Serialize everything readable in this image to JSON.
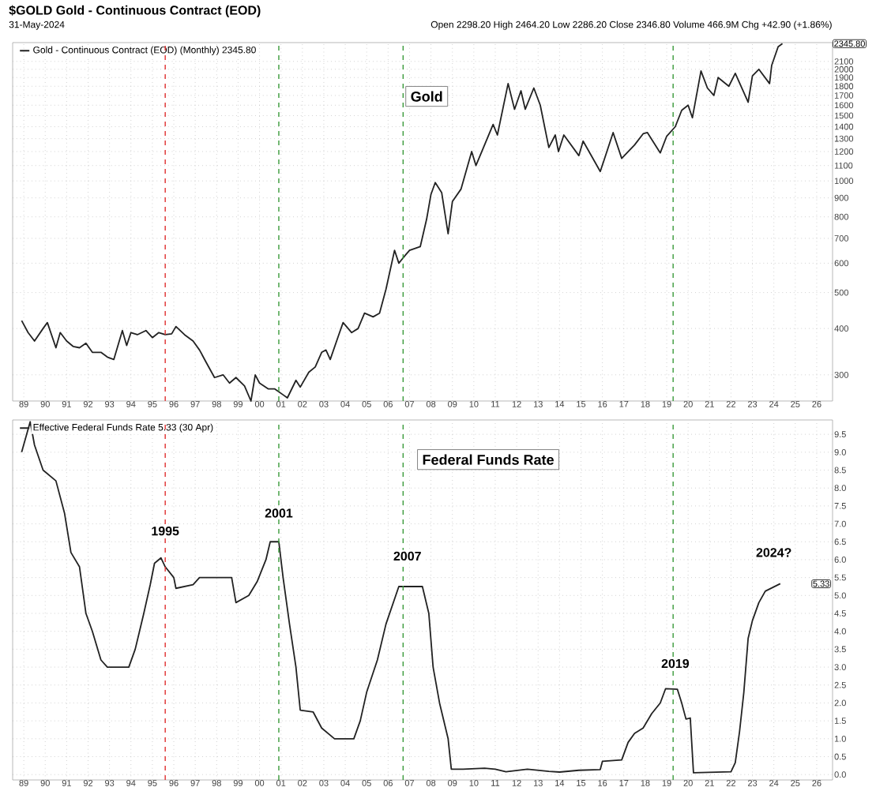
{
  "chart_data": [
    {
      "type": "line",
      "title": "$GOLD Gold - Continuous Contract (EOD)",
      "subtitle": "31-May-2024",
      "log": "y",
      "grid": true,
      "legend": "top left",
      "line_style": "solid",
      "annotations": [
        "Open 2298.20 High 2464.20 Low 2286.20 Close 2346.80 Volume 466.9M Chg +42.90 (+1.86%)",
        "Gold",
        "2345.80"
      ],
      "series": [
        {
          "name": "Gold - Continuous Contract (EOD) (Monthly) 2345.80",
          "color": "#222222",
          "x": [
            1988.9,
            1989.2,
            1989.5,
            1989.9,
            1990.1,
            1990.5,
            1990.7,
            1991.0,
            1991.3,
            1991.6,
            1991.9,
            1992.2,
            1992.6,
            1992.9,
            1993.2,
            1993.6,
            1993.8,
            1994.0,
            1994.3,
            1994.7,
            1995.0,
            1995.3,
            1995.6,
            1995.9,
            1996.1,
            1996.5,
            1996.9,
            1997.2,
            1997.5,
            1997.9,
            1998.3,
            1998.6,
            1998.9,
            1999.3,
            1999.6,
            1999.8,
            2000.0,
            2000.4,
            2000.7,
            2001.1,
            2001.3,
            2001.7,
            2001.9,
            2002.3,
            2002.6,
            2002.9,
            2003.1,
            2003.3,
            2003.7,
            2003.9,
            2004.3,
            2004.6,
            2004.9,
            2005.3,
            2005.6,
            2005.9,
            2006.3,
            2006.5,
            2006.8,
            2007.0,
            2007.5,
            2007.8,
            2008.0,
            2008.2,
            2008.5,
            2008.8,
            2009.0,
            2009.4,
            2009.9,
            2010.1,
            2010.5,
            2010.9,
            2011.1,
            2011.6,
            2011.9,
            2012.2,
            2012.4,
            2012.8,
            2013.1,
            2013.5,
            2013.8,
            2013.95,
            2014.2,
            2014.9,
            2015.1,
            2015.9,
            2016.5,
            2016.9,
            2017.5,
            2017.9,
            2018.1,
            2018.7,
            2019.0,
            2019.4,
            2019.7,
            2020.0,
            2020.2,
            2020.6,
            2020.9,
            2021.2,
            2021.4,
            2021.9,
            2022.2,
            2022.8,
            2023.0,
            2023.3,
            2023.8,
            2023.9,
            2024.2,
            2024.4
          ],
          "values": [
            420,
            390,
            370,
            400,
            415,
            355,
            390,
            370,
            358,
            355,
            365,
            345,
            345,
            335,
            330,
            395,
            360,
            390,
            385,
            395,
            378,
            390,
            385,
            387,
            405,
            385,
            370,
            350,
            325,
            295,
            300,
            285,
            295,
            280,
            255,
            300,
            285,
            275,
            275,
            265,
            260,
            290,
            278,
            305,
            315,
            345,
            350,
            330,
            385,
            415,
            390,
            400,
            440,
            430,
            440,
            510,
            650,
            600,
            630,
            650,
            665,
            790,
            920,
            990,
            930,
            720,
            880,
            950,
            1200,
            1100,
            1250,
            1420,
            1330,
            1830,
            1560,
            1750,
            1560,
            1780,
            1600,
            1230,
            1330,
            1200,
            1330,
            1170,
            1280,
            1060,
            1350,
            1150,
            1250,
            1340,
            1350,
            1190,
            1320,
            1400,
            1550,
            1600,
            1480,
            1980,
            1780,
            1700,
            1900,
            1800,
            1950,
            1630,
            1920,
            2000,
            1830,
            2050,
            2300,
            2345.8
          ]
        }
      ],
      "ref_lines": [
        {
          "axis": "x",
          "value": 1995.6,
          "color": "#e03030",
          "line_style": "dashed"
        },
        {
          "axis": "x",
          "value": 2000.9,
          "color": "#3a9a3a",
          "line_style": "dashed"
        },
        {
          "axis": "x",
          "value": 2006.7,
          "color": "#3a9a3a",
          "line_style": "dashed"
        },
        {
          "axis": "x",
          "value": 2019.3,
          "color": "#3a9a3a",
          "line_style": "dashed"
        }
      ],
      "xlim": [
        1988.48,
        2026.74
      ],
      "xticks": [
        {
          "value": 1989,
          "label": "89"
        },
        {
          "value": 1990,
          "label": "90"
        },
        {
          "value": 1991,
          "label": "91"
        },
        {
          "value": 1992,
          "label": "92"
        },
        {
          "value": 1993,
          "label": "93"
        },
        {
          "value": 1994,
          "label": "94"
        },
        {
          "value": 1995,
          "label": "95"
        },
        {
          "value": 1996,
          "label": "96"
        },
        {
          "value": 1997,
          "label": "97"
        },
        {
          "value": 1998,
          "label": "98"
        },
        {
          "value": 1999,
          "label": "99"
        },
        {
          "value": 2000,
          "label": "00"
        },
        {
          "value": 2001,
          "label": "01"
        },
        {
          "value": 2002,
          "label": "02"
        },
        {
          "value": 2003,
          "label": "03"
        },
        {
          "value": 2004,
          "label": "04"
        },
        {
          "value": 2005,
          "label": "05"
        },
        {
          "value": 2006,
          "label": "06"
        },
        {
          "value": 2007,
          "label": "07"
        },
        {
          "value": 2008,
          "label": "08"
        },
        {
          "value": 2009,
          "label": "09"
        },
        {
          "value": 2010,
          "label": "10"
        },
        {
          "value": 2011,
          "label": "11"
        },
        {
          "value": 2012,
          "label": "12"
        },
        {
          "value": 2013,
          "label": "13"
        },
        {
          "value": 2014,
          "label": "14"
        },
        {
          "value": 2015,
          "label": "15"
        },
        {
          "value": 2016,
          "label": "16"
        },
        {
          "value": 2017,
          "label": "17"
        },
        {
          "value": 2018,
          "label": "18"
        },
        {
          "value": 2019,
          "label": "19"
        },
        {
          "value": 2020,
          "label": "20"
        },
        {
          "value": 2021,
          "label": "21"
        },
        {
          "value": 2022,
          "label": "22"
        },
        {
          "value": 2023,
          "label": "23"
        },
        {
          "value": 2024,
          "label": "24"
        },
        {
          "value": 2025,
          "label": "25"
        },
        {
          "value": 2026,
          "label": "26"
        }
      ],
      "ylim": [
        255,
        2360
      ],
      "yticks": [
        300,
        400,
        500,
        600,
        700,
        800,
        900,
        1000,
        1100,
        1200,
        1300,
        1400,
        1500,
        1600,
        1700,
        1800,
        1900,
        2000,
        2100
      ]
    },
    {
      "type": "line",
      "grid": true,
      "legend": "top left",
      "line_style": "solid",
      "annotations": [
        "Federal Funds Rate",
        {
          "text": "1995",
          "x": 1995.6,
          "y": 6.8
        },
        {
          "text": "2001",
          "x": 2000.9,
          "y": 7.3
        },
        {
          "text": "2007",
          "x": 2006.9,
          "y": 6.1
        },
        {
          "text": "2019",
          "x": 2019.4,
          "y": 3.1
        },
        {
          "text": "2024?",
          "x": 2024.0,
          "y": 6.2
        },
        "5.33"
      ],
      "series": [
        {
          "name": "Effective Federal Funds Rate 5.33 (30 Apr)",
          "color": "#222222",
          "x": [
            1988.9,
            1989.3,
            1989.5,
            1989.9,
            1990.5,
            1990.9,
            1991.2,
            1991.6,
            1991.9,
            1992.2,
            1992.6,
            1992.9,
            1993.5,
            1993.9,
            1994.2,
            1994.4,
            1994.6,
            1994.9,
            1995.1,
            1995.4,
            1995.6,
            1996.0,
            1996.1,
            1996.9,
            1997.2,
            1998.7,
            1998.9,
            1999.5,
            1999.9,
            2000.3,
            2000.5,
            2000.9,
            2001.1,
            2001.4,
            2001.7,
            2001.9,
            2002.5,
            2002.9,
            2003.5,
            2004.4,
            2004.7,
            2005.0,
            2005.5,
            2005.9,
            2006.5,
            2007.6,
            2007.9,
            2008.1,
            2008.4,
            2008.8,
            2008.95,
            2009.5,
            2010.5,
            2011.0,
            2011.5,
            2012.5,
            2013.5,
            2014.0,
            2014.9,
            2015.9,
            2016.0,
            2016.9,
            2017.2,
            2017.5,
            2017.9,
            2018.3,
            2018.7,
            2018.95,
            2019.5,
            2019.7,
            2019.9,
            2020.1,
            2020.25,
            2022.0,
            2022.2,
            2022.4,
            2022.6,
            2022.8,
            2023.0,
            2023.3,
            2023.6,
            2024.3
          ],
          "values": [
            9.0,
            9.85,
            9.2,
            8.5,
            8.2,
            7.3,
            6.2,
            5.8,
            4.5,
            4.0,
            3.2,
            3.0,
            3.0,
            3.0,
            3.5,
            4.0,
            4.5,
            5.3,
            5.9,
            6.05,
            5.8,
            5.5,
            5.2,
            5.3,
            5.5,
            5.5,
            4.8,
            5.0,
            5.4,
            6.0,
            6.5,
            6.5,
            5.5,
            4.2,
            3.0,
            1.8,
            1.75,
            1.3,
            1.0,
            1.0,
            1.5,
            2.3,
            3.2,
            4.2,
            5.25,
            5.25,
            4.5,
            3.0,
            2.0,
            1.0,
            0.15,
            0.15,
            0.18,
            0.15,
            0.08,
            0.15,
            0.09,
            0.07,
            0.12,
            0.14,
            0.37,
            0.41,
            0.9,
            1.15,
            1.3,
            1.7,
            2.0,
            2.4,
            2.38,
            2.0,
            1.55,
            1.58,
            0.05,
            0.08,
            0.33,
            1.2,
            2.3,
            3.8,
            4.3,
            4.8,
            5.12,
            5.33
          ]
        }
      ],
      "ref_lines": [
        {
          "axis": "x",
          "value": 1995.6,
          "color": "#e03030",
          "line_style": "dashed"
        },
        {
          "axis": "x",
          "value": 2000.9,
          "color": "#3a9a3a",
          "line_style": "dashed"
        },
        {
          "axis": "x",
          "value": 2006.7,
          "color": "#3a9a3a",
          "line_style": "dashed"
        },
        {
          "axis": "x",
          "value": 2019.3,
          "color": "#3a9a3a",
          "line_style": "dashed"
        }
      ],
      "xlim": [
        1988.48,
        2026.74
      ],
      "xticks": [
        {
          "value": 1989,
          "label": "89"
        },
        {
          "value": 1990,
          "label": "90"
        },
        {
          "value": 1991,
          "label": "91"
        },
        {
          "value": 1992,
          "label": "92"
        },
        {
          "value": 1993,
          "label": "93"
        },
        {
          "value": 1994,
          "label": "94"
        },
        {
          "value": 1995,
          "label": "95"
        },
        {
          "value": 1996,
          "label": "96"
        },
        {
          "value": 1997,
          "label": "97"
        },
        {
          "value": 1998,
          "label": "98"
        },
        {
          "value": 1999,
          "label": "99"
        },
        {
          "value": 2000,
          "label": "00"
        },
        {
          "value": 2001,
          "label": "01"
        },
        {
          "value": 2002,
          "label": "02"
        },
        {
          "value": 2003,
          "label": "03"
        },
        {
          "value": 2004,
          "label": "04"
        },
        {
          "value": 2005,
          "label": "05"
        },
        {
          "value": 2006,
          "label": "06"
        },
        {
          "value": 2007,
          "label": "07"
        },
        {
          "value": 2008,
          "label": "08"
        },
        {
          "value": 2009,
          "label": "09"
        },
        {
          "value": 2010,
          "label": "10"
        },
        {
          "value": 2011,
          "label": "11"
        },
        {
          "value": 2012,
          "label": "12"
        },
        {
          "value": 2013,
          "label": "13"
        },
        {
          "value": 2014,
          "label": "14"
        },
        {
          "value": 2015,
          "label": "15"
        },
        {
          "value": 2016,
          "label": "16"
        },
        {
          "value": 2017,
          "label": "17"
        },
        {
          "value": 2018,
          "label": "18"
        },
        {
          "value": 2019,
          "label": "19"
        },
        {
          "value": 2020,
          "label": "20"
        },
        {
          "value": 2021,
          "label": "21"
        },
        {
          "value": 2022,
          "label": "22"
        },
        {
          "value": 2023,
          "label": "23"
        },
        {
          "value": 2024,
          "label": "24"
        },
        {
          "value": 2025,
          "label": "25"
        },
        {
          "value": 2026,
          "label": "26"
        }
      ],
      "ylim": [
        -0.15,
        9.9
      ],
      "yticks": [
        {
          "value": 0,
          "label": "0.0"
        },
        {
          "value": 0.5,
          "label": "0.5"
        },
        {
          "value": 1,
          "label": "1.0"
        },
        {
          "value": 1.5,
          "label": "1.5"
        },
        {
          "value": 2,
          "label": "2.0"
        },
        {
          "value": 2.5,
          "label": "2.5"
        },
        {
          "value": 3,
          "label": "3.0"
        },
        {
          "value": 3.5,
          "label": "3.5"
        },
        {
          "value": 4,
          "label": "4.0"
        },
        {
          "value": 4.5,
          "label": "4.5"
        },
        {
          "value": 5,
          "label": "5.0"
        },
        {
          "value": 5.5,
          "label": "5.5"
        },
        {
          "value": 6,
          "label": "6.0"
        },
        {
          "value": 6.5,
          "label": "6.5"
        },
        {
          "value": 7,
          "label": "7.0"
        },
        {
          "value": 7.5,
          "label": "7.5"
        },
        {
          "value": 8,
          "label": "8.0"
        },
        {
          "value": 8.5,
          "label": "8.5"
        },
        {
          "value": 9,
          "label": "9.0"
        },
        {
          "value": 9.5,
          "label": "9.5"
        }
      ]
    }
  ]
}
